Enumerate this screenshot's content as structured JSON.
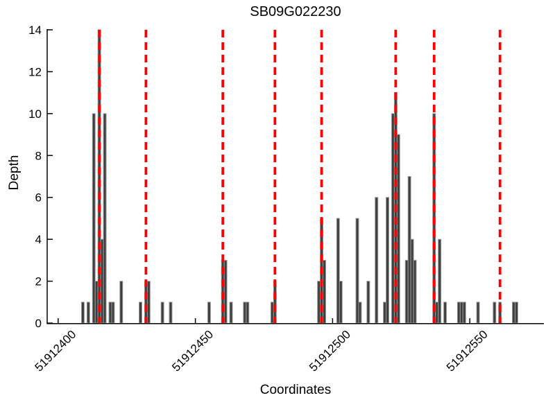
{
  "figure": {
    "background": "#ffffff"
  },
  "chart_data": {
    "type": "bar",
    "title": "SB09G022230",
    "xlabel": "Coordinates",
    "ylabel": "Depth",
    "xlim": [
      51912396,
      51912577
    ],
    "ylim": [
      0,
      14
    ],
    "x_ticks": [
      51912400,
      51912450,
      51912500,
      51912550
    ],
    "x_tick_labels": [
      "51912400",
      "51912450",
      "51912500",
      "51912550"
    ],
    "y_ticks": [
      0,
      2,
      4,
      6,
      8,
      10,
      12,
      14
    ],
    "y_tick_labels": [
      "0",
      "2",
      "4",
      "6",
      "8",
      "10",
      "12",
      "14"
    ],
    "grid": false,
    "legend": null,
    "bar_width_units": 1,
    "bar_fill_color": "#3f3f3f",
    "bar_edge_color": "#9a9a9a",
    "marker_line_color": "#ff0000",
    "marker_line_style": "dashed",
    "marker_lines": [
      51912415,
      51912432,
      51912460,
      51912479,
      51912496,
      51912523,
      51912537,
      51912561
    ],
    "bars": [
      [
        51912409,
        1
      ],
      [
        51912411,
        1
      ],
      [
        51912413,
        10
      ],
      [
        51912414,
        2
      ],
      [
        51912415,
        14
      ],
      [
        51912416,
        4
      ],
      [
        51912417,
        10
      ],
      [
        51912419,
        1
      ],
      [
        51912420,
        1
      ],
      [
        51912423,
        2
      ],
      [
        51912430,
        1
      ],
      [
        51912432,
        2
      ],
      [
        51912433,
        2
      ],
      [
        51912438,
        1
      ],
      [
        51912441,
        1
      ],
      [
        51912455,
        1
      ],
      [
        51912460,
        3
      ],
      [
        51912461,
        3
      ],
      [
        51912463,
        1
      ],
      [
        51912468,
        1
      ],
      [
        51912469,
        1
      ],
      [
        51912478,
        1
      ],
      [
        51912479,
        2
      ],
      [
        51912495,
        2
      ],
      [
        51912496,
        5
      ],
      [
        51912497,
        3
      ],
      [
        51912502,
        5
      ],
      [
        51912503,
        2
      ],
      [
        51912509,
        5
      ],
      [
        51912510,
        1
      ],
      [
        51912513,
        2
      ],
      [
        51912516,
        6
      ],
      [
        51912519,
        1
      ],
      [
        51912520,
        6
      ],
      [
        51912522,
        10
      ],
      [
        51912523,
        11
      ],
      [
        51912524,
        9
      ],
      [
        51912527,
        3
      ],
      [
        51912528,
        7
      ],
      [
        51912529,
        4
      ],
      [
        51912530,
        3
      ],
      [
        51912537,
        10
      ],
      [
        51912538,
        1
      ],
      [
        51912539,
        4
      ],
      [
        51912541,
        1
      ],
      [
        51912546,
        1
      ],
      [
        51912547,
        1
      ],
      [
        51912548,
        1
      ],
      [
        51912553,
        1
      ],
      [
        51912559,
        1
      ],
      [
        51912561,
        1
      ],
      [
        51912566,
        1
      ],
      [
        51912567,
        1
      ]
    ]
  }
}
